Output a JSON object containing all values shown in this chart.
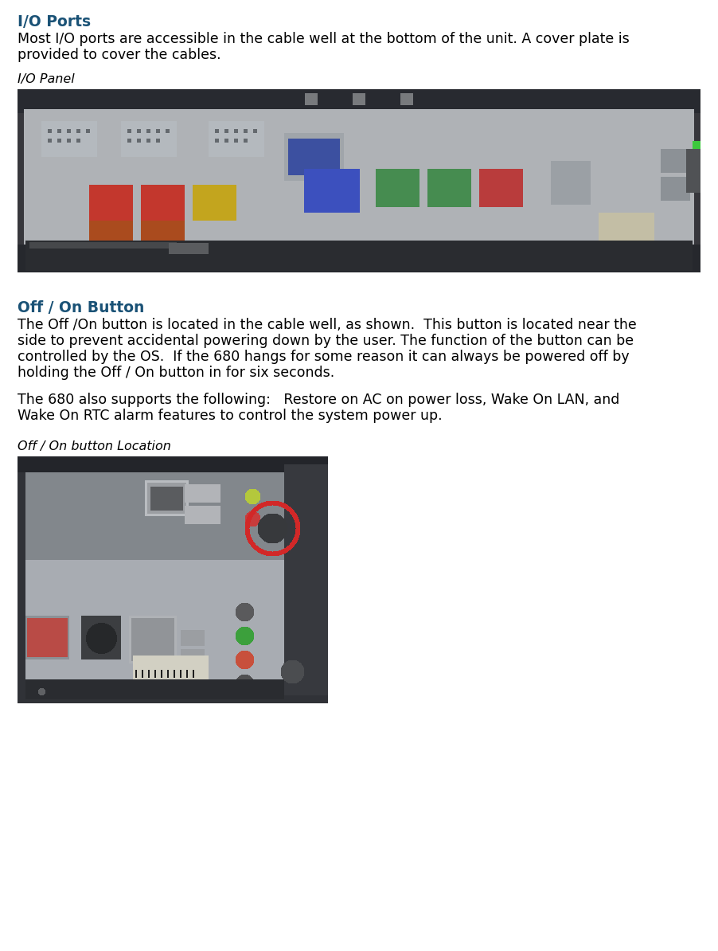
{
  "bg_color": "#ffffff",
  "title1": "I/O Ports",
  "title1_color": "#1A5276",
  "para1_line1": "Most I/O ports are accessible in the cable well at the bottom of the unit. A cover plate is",
  "para1_line2": "provided to cover the cables.",
  "caption1": "I/O Panel",
  "title2": "Off / On Button",
  "title2_color": "#1A5276",
  "para2_line1": "The Off /On button is located in the cable well, as shown.  This button is located near the",
  "para2_line2": "side to prevent accidental powering down by the user. The function of the button can be",
  "para2_line3": "controlled by the OS.  If the 680 hangs for some reason it can always be powered off by",
  "para2_line4": "holding the Off / On button in for six seconds.",
  "para3_line1": "The 680 also supports the following:   Restore on AC on power loss, Wake On LAN, and",
  "para3_line2": "Wake On RTC alarm features to control the system power up.",
  "caption2": "Off / On button Location",
  "font_size_title": 13.5,
  "font_size_para": 12.5,
  "font_size_caption": 11.5
}
